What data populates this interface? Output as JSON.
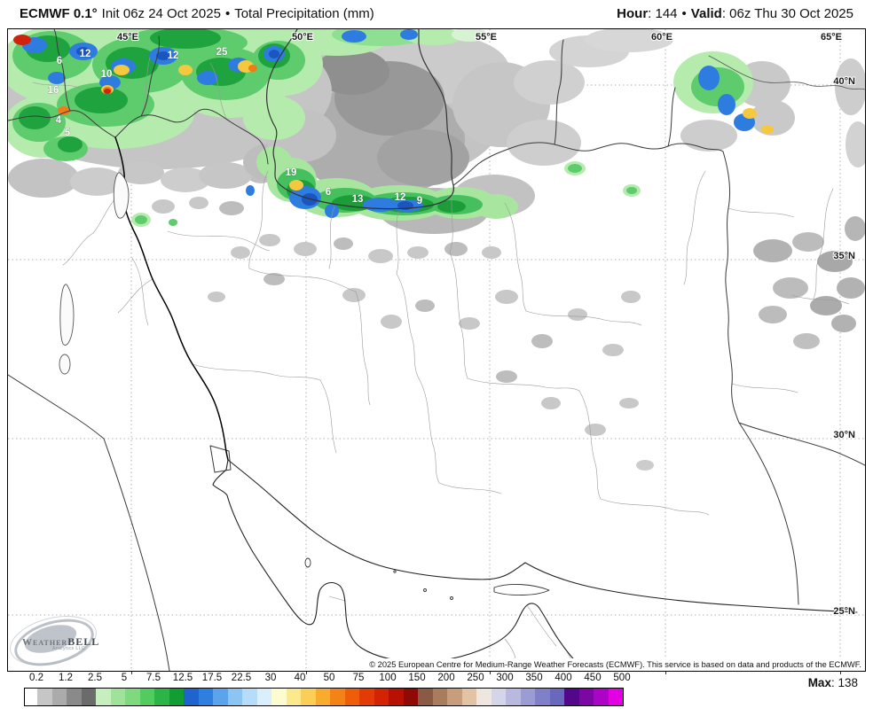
{
  "header": {
    "model": "ECMWF 0.1°",
    "init": "Init 06z 24 Oct 2025",
    "bullet": "•",
    "product": "Total Precipitation (mm)",
    "hour_label": "Hour",
    "colon": ": ",
    "hour_value": "144",
    "valid_label": "Valid",
    "valid_value": "06z Thu 30 Oct 2025"
  },
  "map": {
    "lon_labels": [
      "45°E",
      "50°E",
      "55°E",
      "60°E",
      "65°E"
    ],
    "lat_labels": [
      "40°N",
      "35°N",
      "30°N",
      "25°N"
    ],
    "precip_labels": [
      "6",
      "12",
      "10",
      "12",
      "25",
      "16",
      "4",
      "5",
      "19",
      "6",
      "13",
      "12",
      "9"
    ],
    "copyright": "© 2025 European Centre for Medium-Range Weather Forecasts (ECMWF). This service is based on data and products of the ECMWF.",
    "logo_brand_1": "Weather",
    "logo_brand_2": "BELL",
    "logo_sub": "Analytics LLC"
  },
  "colorbar": {
    "ticks": [
      "0.2",
      "1.2",
      "2.5",
      "5",
      "7.5",
      "12.5",
      "17.5",
      "22.5",
      "30",
      "40",
      "50",
      "75",
      "100",
      "150",
      "200",
      "250",
      "300",
      "350",
      "400",
      "450",
      "500"
    ],
    "segment_colors": [
      "#ffffff",
      "#c6c6c6",
      "#ababab",
      "#8a8a8a",
      "#6b6b6b",
      "#c7eebf",
      "#9fe39a",
      "#7ed97f",
      "#52cc5e",
      "#2bb547",
      "#109e33",
      "#1f63cf",
      "#2f7fe0",
      "#5ba3ea",
      "#8cc4f2",
      "#b5dcf8",
      "#d9effc",
      "#fdfbd0",
      "#fce98c",
      "#fbce55",
      "#f8ab2d",
      "#f58216",
      "#ef5c0a",
      "#e33b05",
      "#d32303",
      "#b81103",
      "#8f0a04",
      "#8a5a44",
      "#a97c5e",
      "#c79d7b",
      "#e2c4a4",
      "#eee6df",
      "#d5d5ea",
      "#b9b9df",
      "#9c9cd4",
      "#8080c8",
      "#6868bc",
      "#53078b",
      "#7d06a5",
      "#ab04c6",
      "#e400e4"
    ],
    "max_label": "Max",
    "max_sep": ": ",
    "max_value": "138"
  }
}
